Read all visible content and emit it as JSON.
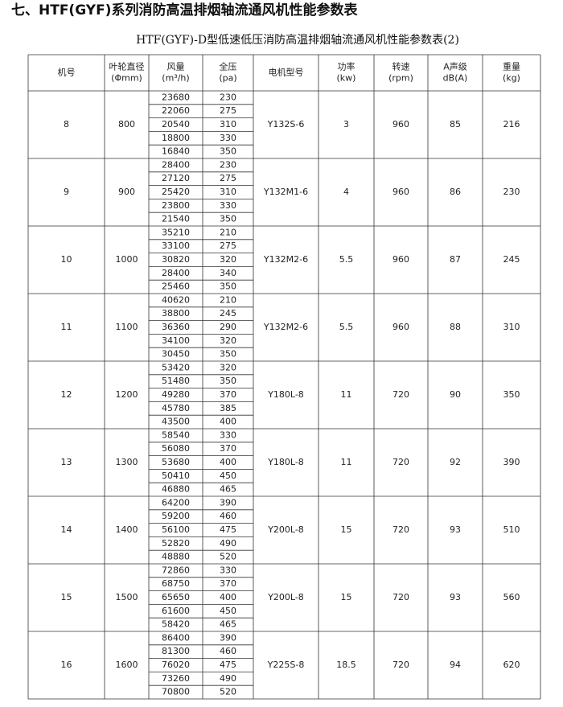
{
  "heading": "七、HTF(GYF)系列消防高温排烟轴流通风机性能参数表",
  "subtitle": "HTF(GYF)-D型低速低压消防高温排烟轴流通风机性能参数表(2)",
  "table": {
    "header": [
      {
        "lines": [
          "机号"
        ]
      },
      {
        "lines": [
          "叶轮直径",
          "(Φmm)"
        ]
      },
      {
        "lines": [
          "风量",
          "(m³/h)"
        ]
      },
      {
        "lines": [
          "全压",
          "(pa)"
        ]
      },
      {
        "lines": [
          "电机型号"
        ]
      },
      {
        "lines": [
          "功率",
          "(kw)"
        ]
      },
      {
        "lines": [
          "转速",
          "(rpm)"
        ]
      },
      {
        "lines": [
          "A声级",
          "dB(A)"
        ]
      },
      {
        "lines": [
          "重量",
          "(kg)"
        ]
      }
    ],
    "groups": [
      {
        "id": 8,
        "diameter": 800,
        "flows": [
          23680,
          22060,
          20540,
          18800,
          16840
        ],
        "pressures": [
          230,
          275,
          310,
          330,
          350
        ],
        "motor": "Y132S-6",
        "power": 3,
        "speed": 960,
        "noise": 85,
        "weight": 216
      },
      {
        "id": 9,
        "diameter": 900,
        "flows": [
          28400,
          27120,
          25420,
          23800,
          21540
        ],
        "pressures": [
          230,
          275,
          310,
          330,
          350
        ],
        "motor": "Y132M1-6",
        "power": 4,
        "speed": 960,
        "noise": 86,
        "weight": 230
      },
      {
        "id": 10,
        "diameter": 1000,
        "flows": [
          35210,
          33100,
          30820,
          28400,
          25460
        ],
        "pressures": [
          210,
          275,
          320,
          340,
          350
        ],
        "motor": "Y132M2-6",
        "power": 5.5,
        "speed": 960,
        "noise": 87,
        "weight": 245
      },
      {
        "id": 11,
        "diameter": 1100,
        "flows": [
          40620,
          38800,
          36360,
          34100,
          30450
        ],
        "pressures": [
          210,
          245,
          290,
          320,
          350
        ],
        "motor": "Y132M2-6",
        "power": 5.5,
        "speed": 960,
        "noise": 88,
        "weight": 310
      },
      {
        "id": 12,
        "diameter": 1200,
        "flows": [
          53420,
          51480,
          49280,
          45780,
          43500
        ],
        "pressures": [
          320,
          350,
          370,
          385,
          400
        ],
        "motor": "Y180L-8",
        "power": 11,
        "speed": 720,
        "noise": 90,
        "weight": 350
      },
      {
        "id": 13,
        "diameter": 1300,
        "flows": [
          58540,
          56080,
          53680,
          50410,
          46880
        ],
        "pressures": [
          330,
          370,
          400,
          450,
          465
        ],
        "motor": "Y180L-8",
        "power": 11,
        "speed": 720,
        "noise": 92,
        "weight": 390
      },
      {
        "id": 14,
        "diameter": 1400,
        "flows": [
          64200,
          59200,
          56100,
          52820,
          48880
        ],
        "pressures": [
          390,
          460,
          475,
          490,
          520
        ],
        "motor": "Y200L-8",
        "power": 15,
        "speed": 720,
        "noise": 93,
        "weight": 510
      },
      {
        "id": 15,
        "diameter": 1500,
        "flows": [
          72860,
          68750,
          65650,
          61600,
          58420
        ],
        "pressures": [
          330,
          370,
          400,
          450,
          465
        ],
        "motor": "Y200L-8",
        "power": 15,
        "speed": 720,
        "noise": 93,
        "weight": 560
      },
      {
        "id": 16,
        "diameter": 1600,
        "flows": [
          86400,
          81300,
          76020,
          73260,
          70800
        ],
        "pressures": [
          390,
          460,
          475,
          490,
          520
        ],
        "motor": "Y225S-8",
        "power": 18.5,
        "speed": 720,
        "noise": 94,
        "weight": 620
      }
    ]
  }
}
